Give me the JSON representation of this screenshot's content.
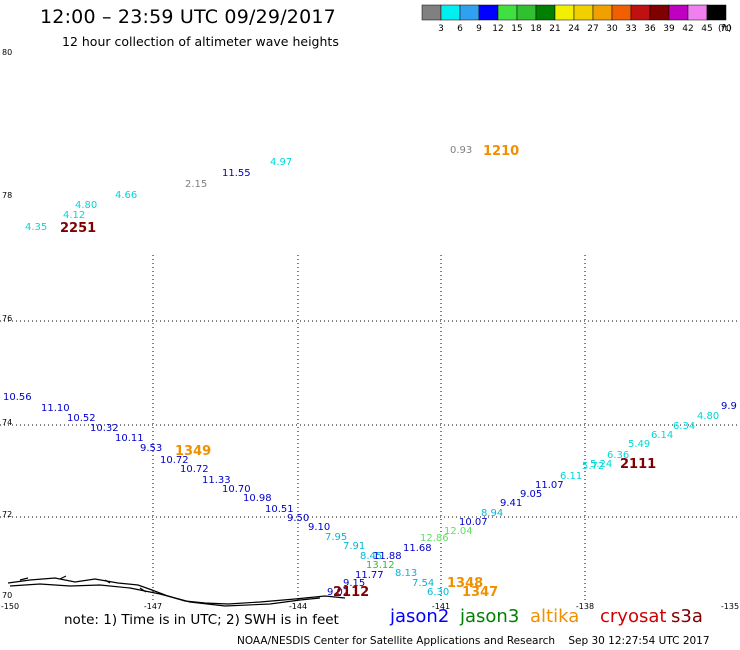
{
  "title": "12:00 – 23:59 UTC 09/29/2017",
  "subtitle": "12 hour collection of altimeter wave heights",
  "legend": {
    "unit": "(ft)",
    "colors": [
      "#808080",
      "#00f0f0",
      "#30a0f0",
      "#0000ff",
      "#40e040",
      "#30c030",
      "#008000",
      "#f0f000",
      "#f0d000",
      "#f0a000",
      "#f06000",
      "#c01010",
      "#800000",
      "#c000c0",
      "#f080f0",
      "#000000"
    ],
    "labels": [
      "3",
      "6",
      "9",
      "12",
      "15",
      "18",
      "21",
      "24",
      "27",
      "30",
      "33",
      "36",
      "39",
      "42",
      "45",
      "70"
    ]
  },
  "axes": {
    "lat_labels": [
      "80",
      "78",
      "76",
      "74",
      "72",
      "70"
    ],
    "lon_labels": [
      "-150",
      "-147",
      "-144",
      "-141",
      "-138",
      "-135"
    ]
  },
  "readings": [
    {
      "t": "4.35",
      "c": "#00d8d8"
    },
    {
      "t": "4.12",
      "c": "#00d8d8"
    },
    {
      "t": "4.80",
      "c": "#00d8d8"
    },
    {
      "t": "4.66",
      "c": "#00d8d8"
    },
    {
      "t": "2.15",
      "c": "#808080"
    },
    {
      "t": "11.55",
      "c": "#0000cc"
    },
    {
      "t": "4.97",
      "c": "#00d8d8"
    },
    {
      "t": "0.93",
      "c": "#808080"
    },
    {
      "t": "10.56",
      "c": "#0000cc"
    },
    {
      "t": "11.10",
      "c": "#0000cc"
    },
    {
      "t": "10.52",
      "c": "#0000cc"
    },
    {
      "t": "10.32",
      "c": "#0000cc"
    },
    {
      "t": "10.11",
      "c": "#0000cc"
    },
    {
      "t": "9.53",
      "c": "#0000cc"
    },
    {
      "t": "10.72",
      "c": "#0000cc"
    },
    {
      "t": "10.72",
      "c": "#0000cc"
    },
    {
      "t": "11.33",
      "c": "#0000cc"
    },
    {
      "t": "10.70",
      "c": "#0000cc"
    },
    {
      "t": "10.98",
      "c": "#0000cc"
    },
    {
      "t": "10.51",
      "c": "#0000cc"
    },
    {
      "t": "9.50",
      "c": "#0000cc"
    },
    {
      "t": "9.10",
      "c": "#0000cc"
    },
    {
      "t": "7.95",
      "c": "#00b8d8"
    },
    {
      "t": "7.91",
      "c": "#00b8d8"
    },
    {
      "t": "8.45",
      "c": "#00b8d8"
    },
    {
      "t": "11.88",
      "c": "#0000cc"
    },
    {
      "t": "11.68",
      "c": "#0000cc"
    },
    {
      "t": "10.07",
      "c": "#0000cc"
    },
    {
      "t": "12.86",
      "c": "#60e060"
    },
    {
      "t": "12.04",
      "c": "#60e060"
    },
    {
      "t": "13.12",
      "c": "#30c030"
    },
    {
      "t": "11.77",
      "c": "#0000cc"
    },
    {
      "t": "8.13",
      "c": "#00b8d8"
    },
    {
      "t": "9.15",
      "c": "#0000cc"
    },
    {
      "t": "9.02",
      "c": "#0000cc"
    },
    {
      "t": "7.54",
      "c": "#00b8d8"
    },
    {
      "t": "6.30",
      "c": "#00b8d8"
    },
    {
      "t": "8.94",
      "c": "#00b8d8"
    },
    {
      "t": "9.41",
      "c": "#0000cc"
    },
    {
      "t": "9.05",
      "c": "#0000cc"
    },
    {
      "t": "11.07",
      "c": "#0000cc"
    },
    {
      "t": "6.11",
      "c": "#00d8d8"
    },
    {
      "t": "5.72",
      "c": "#00d8d8"
    },
    {
      "t": "5.24",
      "c": "#00d8d8"
    },
    {
      "t": "6.36",
      "c": "#00d8d8"
    },
    {
      "t": "5.49",
      "c": "#00d8d8"
    },
    {
      "t": "6.14",
      "c": "#00d8d8"
    },
    {
      "t": "6.34",
      "c": "#00d8d8"
    },
    {
      "t": "4.80",
      "c": "#00d8d8"
    },
    {
      "t": "9.9",
      "c": "#0000cc"
    }
  ],
  "pass_times": [
    {
      "t": "2251",
      "c": "#800000"
    },
    {
      "t": "1210",
      "c": "#f09000"
    },
    {
      "t": "1349",
      "c": "#f09000"
    },
    {
      "t": "2112",
      "c": "#800000"
    },
    {
      "t": "1348",
      "c": "#f09000"
    },
    {
      "t": "1347",
      "c": "#f09000"
    },
    {
      "t": "2111",
      "c": "#800000"
    }
  ],
  "note": "note: 1) Time is in UTC; 2) SWH is in feet",
  "satellites": [
    {
      "name": "jason2",
      "c": "#0000ff"
    },
    {
      "name": "jason3",
      "c": "#008000"
    },
    {
      "name": "altika",
      "c": "#f09000"
    },
    {
      "name": "cryosat",
      "c": "#d00000"
    },
    {
      "name": "s3a",
      "c": "#800000"
    }
  ],
  "footer": "NOAA/NESDIS Center for Satellite Applications and Research    Sep 30 12:27:54 UTC 2017"
}
